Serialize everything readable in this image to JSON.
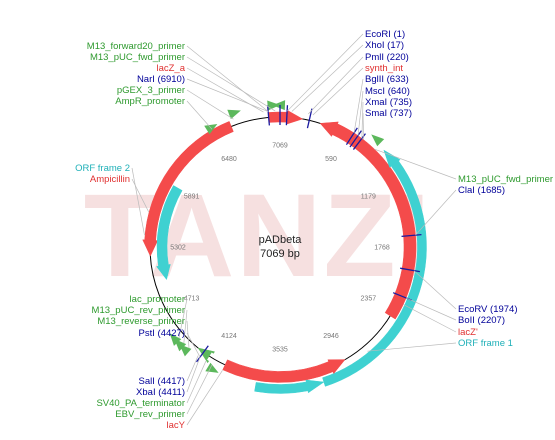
{
  "plasmid": {
    "name": "pADbeta",
    "length_label": "7069 bp",
    "length": 7069
  },
  "watermark": "TANZI",
  "colors": {
    "backbone": "#000000",
    "ampicillin": "#f44b4b",
    "lacZ": "#f44b4b",
    "orf": "#3fd1d1",
    "primer": "#5cb85c",
    "site_line": "#1a1aa0",
    "label_site": "#000099",
    "label_feature_green": "#2e9a2e",
    "label_feature_red": "#e03030",
    "label_orf": "#1fb0b8",
    "leader": "#bbbbbb",
    "watermark": "#f5dede",
    "tick_text": "#777777"
  },
  "ticks": [
    "7069",
    "590",
    "1179",
    "1768",
    "2357",
    "2946",
    "3535",
    "4124",
    "4713",
    "5302",
    "5891",
    "6480"
  ],
  "labels": [
    {
      "text": "EcoRI (1)",
      "color": "site",
      "side": "right"
    },
    {
      "text": "XhoI (17)",
      "color": "site",
      "side": "right"
    },
    {
      "text": "PmlI (220)",
      "color": "site",
      "side": "right"
    },
    {
      "text": "synth_int",
      "color": "red",
      "side": "right"
    },
    {
      "text": "BglII (633)",
      "color": "site",
      "side": "right"
    },
    {
      "text": "MscI (640)",
      "color": "site",
      "side": "right"
    },
    {
      "text": "XmaI (735)",
      "color": "site",
      "side": "right"
    },
    {
      "text": "SmaI (737)",
      "color": "site",
      "side": "right"
    },
    {
      "text": "M13_forward20_primer",
      "color": "green",
      "side": "left"
    },
    {
      "text": "M13_pUC_fwd_primer",
      "color": "green",
      "side": "left"
    },
    {
      "text": "lacZ_a",
      "color": "red",
      "side": "left"
    },
    {
      "text": "NarI (6910)",
      "color": "site",
      "side": "left"
    },
    {
      "text": "pGEX_3_primer",
      "color": "green",
      "side": "left"
    },
    {
      "text": "AmpR_promoter",
      "color": "green",
      "side": "left"
    },
    {
      "text": "ORF frame 2",
      "color": "orf",
      "side": "left"
    },
    {
      "text": "Ampicillin",
      "color": "red",
      "side": "left"
    },
    {
      "text": "M13_pUC_fwd_primer",
      "color": "green",
      "side": "right"
    },
    {
      "text": "ClaI (1685)",
      "color": "site",
      "side": "right"
    },
    {
      "text": "lac_promoter",
      "color": "green",
      "side": "left"
    },
    {
      "text": "M13_pUC_rev_primer",
      "color": "green",
      "side": "left"
    },
    {
      "text": "M13_reverse_primer",
      "color": "green",
      "side": "left"
    },
    {
      "text": "PstI (4427)",
      "color": "site",
      "side": "left"
    },
    {
      "text": "EcoRV (1974)",
      "color": "site",
      "side": "right"
    },
    {
      "text": "BoII (2207)",
      "color": "site",
      "side": "right"
    },
    {
      "text": "lacZ'",
      "color": "red",
      "side": "right"
    },
    {
      "text": "ORF frame 1",
      "color": "orf",
      "side": "right"
    },
    {
      "text": "SalI (4417)",
      "color": "site",
      "side": "left"
    },
    {
      "text": "XbaI (4411)",
      "color": "site",
      "side": "left"
    },
    {
      "text": "SV40_PA_terminator",
      "color": "green",
      "side": "left"
    },
    {
      "text": "EBV_rev_primer",
      "color": "green",
      "side": "left"
    },
    {
      "text": "lacY",
      "color": "red",
      "side": "left"
    }
  ]
}
